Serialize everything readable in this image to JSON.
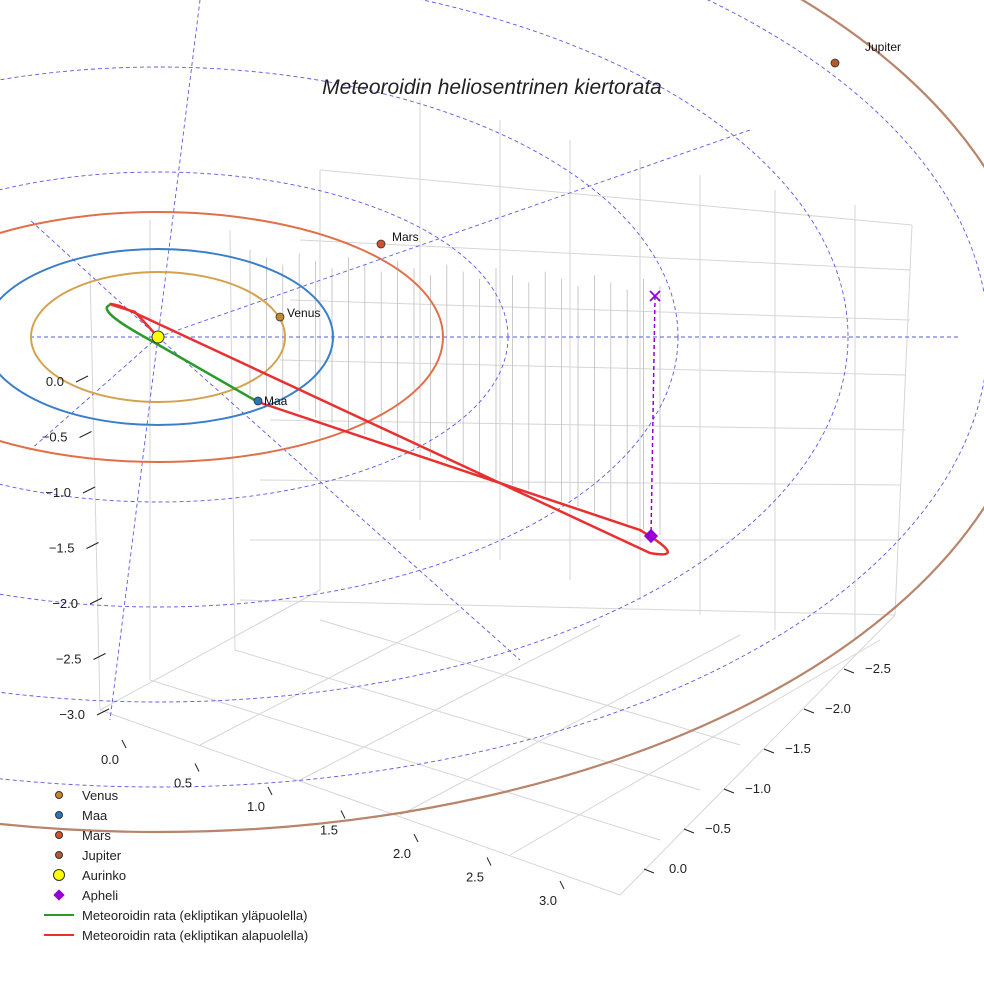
{
  "chart_data": {
    "type": "3d-orbit-plot",
    "title": "Meteoroidin heliosentrinen kiertorata",
    "axes": {
      "z_ticks": [
        "0.0",
        "−0.5",
        "−1.0",
        "−1.5",
        "−2.0",
        "−2.5",
        "−3.0"
      ],
      "x_ticks": [
        "0.0",
        "0.5",
        "1.0",
        "1.5",
        "2.0",
        "2.5",
        "3.0"
      ],
      "y_ticks": [
        "−2.5",
        "−2.0",
        "−1.5",
        "−1.0",
        "−0.5",
        "0.0"
      ]
    },
    "planets": [
      {
        "name": "Venus",
        "orbit_radius_au": 0.72,
        "color": "#d4a24e",
        "marker_color": "#c8862a"
      },
      {
        "name": "Maa",
        "orbit_radius_au": 1.0,
        "color": "#3a7fc8",
        "marker_color": "#2378b5"
      },
      {
        "name": "Mars",
        "orbit_radius_au": 1.52,
        "color": "#e0704a",
        "marker_color": "#d4522a"
      },
      {
        "name": "Jupiter",
        "orbit_radius_au": 5.2,
        "color": "#b8846a",
        "marker_color": "#b05a30"
      }
    ],
    "sun": {
      "name": "Aurinko",
      "color": "#ffff00"
    },
    "aphelion": {
      "name": "Apheli",
      "color": "#9400d3"
    },
    "meteoroid_orbit": {
      "above_ecliptic_label": "Meteoroidin rata (ekliptikan yläpuolella)",
      "below_ecliptic_label": "Meteoroidin rata (ekliptikan alapuolella)",
      "above_color": "#2a9a2a",
      "below_color": "#e83030"
    },
    "legend": [
      {
        "label": "Venus",
        "kind": "dot",
        "color": "#c8862a"
      },
      {
        "label": "Maa",
        "kind": "dot",
        "color": "#2378b5"
      },
      {
        "label": "Mars",
        "kind": "dot",
        "color": "#d4522a"
      },
      {
        "label": "Jupiter",
        "kind": "dot",
        "color": "#b05a30"
      },
      {
        "label": "Aurinko",
        "kind": "sun",
        "color": "#ffff00"
      },
      {
        "label": "Apheli",
        "kind": "diamond",
        "color": "#9400d3"
      },
      {
        "label": "Meteoroidin rata (ekliptikan yläpuolella)",
        "kind": "line",
        "color": "#2a9a2a"
      },
      {
        "label": "Meteoroidin rata (ekliptikan alapuolella)",
        "kind": "line",
        "color": "#e83030"
      }
    ]
  }
}
